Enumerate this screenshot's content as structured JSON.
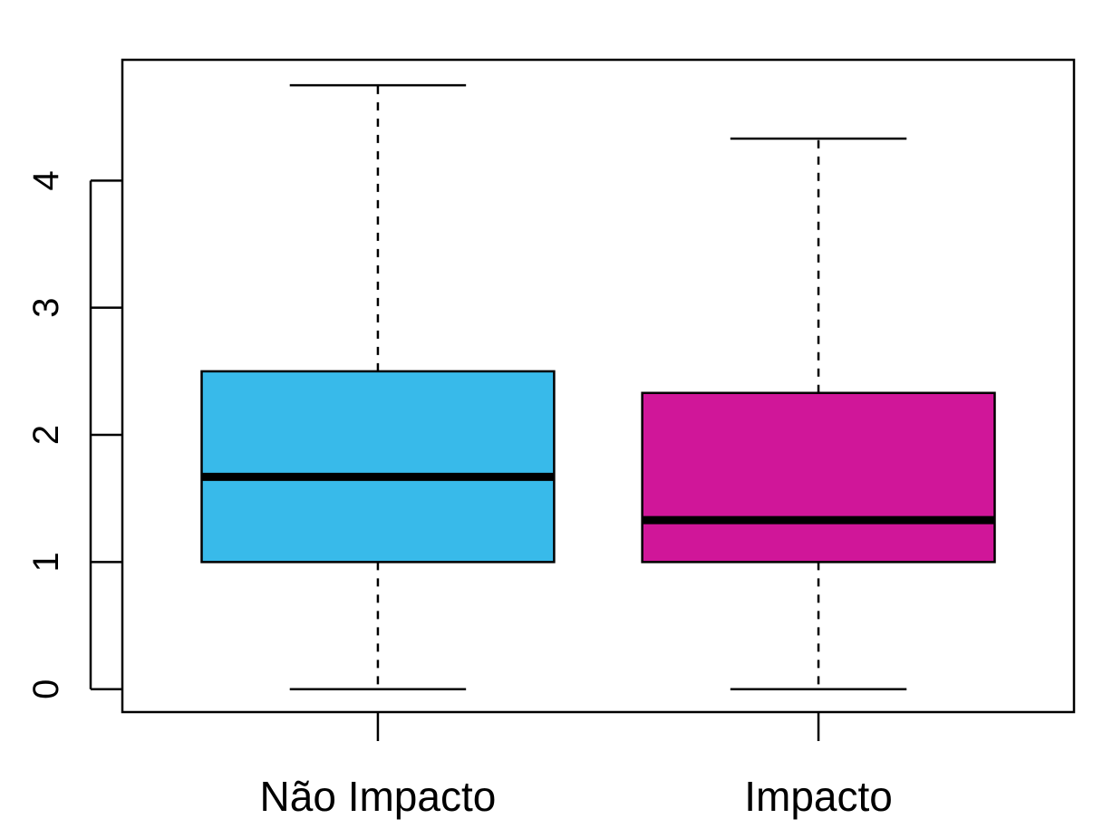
{
  "chart_data": {
    "type": "boxplot",
    "title": "",
    "xlabel": "",
    "ylabel": "",
    "ylim": [
      -0.18,
      4.95
    ],
    "yticks": [
      "0",
      "1",
      "2",
      "3",
      "4"
    ],
    "categories": [
      "Não Impacto",
      "Impacto"
    ],
    "boxes": [
      {
        "name": "Não Impacto",
        "min": 0,
        "q1": 1,
        "median": 1.67,
        "q3": 2.5,
        "max": 4.75,
        "color": "#38BAEA"
      },
      {
        "name": "Impacto",
        "min": 0,
        "q1": 1,
        "median": 1.33,
        "q3": 2.33,
        "max": 4.33,
        "color": "#D01699"
      }
    ],
    "grid": false,
    "legend": "none"
  }
}
